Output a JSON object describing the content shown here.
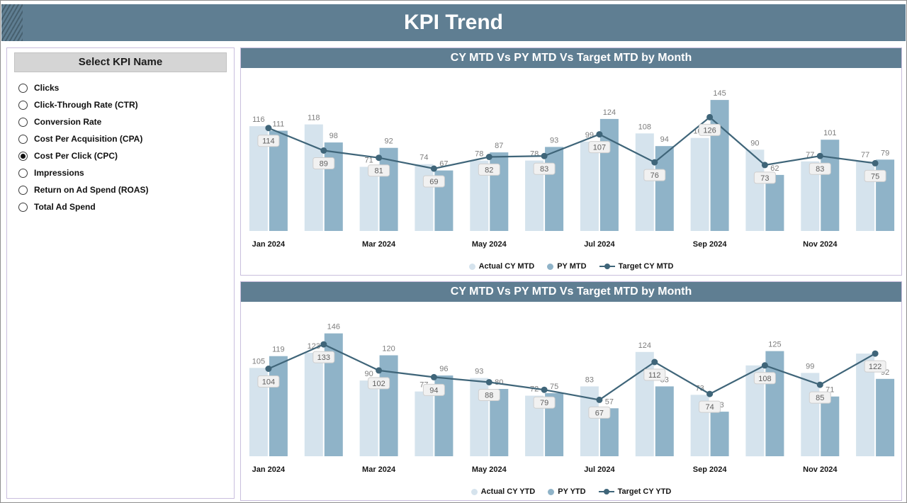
{
  "header": {
    "title": "KPI Trend"
  },
  "kpi_panel": {
    "title": "Select KPI Name",
    "options": [
      {
        "label": "Clicks",
        "selected": false
      },
      {
        "label": "Click-Through Rate (CTR)",
        "selected": false
      },
      {
        "label": "Conversion Rate",
        "selected": false
      },
      {
        "label": "Cost Per Acquisition (CPA)",
        "selected": false
      },
      {
        "label": "Cost Per Click (CPC)",
        "selected": true
      },
      {
        "label": "Impressions",
        "selected": false
      },
      {
        "label": "Return on Ad Spend (ROAS)",
        "selected": false
      },
      {
        "label": "Total Ad Spend",
        "selected": false
      }
    ]
  },
  "colors": {
    "header_bg": "#5f7e92",
    "panel_border": "#c9bedd",
    "kpi_title_bg": "#d5d5d5",
    "bar_light": "#d5e3ed",
    "bar_dark": "#8fb3c8",
    "target_line": "#3f6579",
    "bar_label_gray": "#7d7d7d"
  },
  "chart_data": [
    {
      "type": "combo_bar_line",
      "title": "CY MTD Vs PY MTD Vs Target MTD by Month",
      "categories": [
        "Jan 2024",
        "Feb 2024",
        "Mar 2024",
        "Apr 2024",
        "May 2024",
        "Jun 2024",
        "Jul 2024",
        "Aug 2024",
        "Sep 2024",
        "Oct 2024",
        "Nov 2024",
        "Dec 2024"
      ],
      "x_tick_labels": [
        "Jan 2024",
        "Mar 2024",
        "May 2024",
        "Jul 2024",
        "Sep 2024",
        "Nov 2024"
      ],
      "series": [
        {
          "name": "Actual CY MTD",
          "type": "bar",
          "color": "#d5e3ed",
          "values": [
            116,
            118,
            71,
            74,
            78,
            78,
            99,
            108,
            103,
            90,
            77,
            77
          ]
        },
        {
          "name": "PY MTD",
          "type": "bar",
          "color": "#8fb3c8",
          "values": [
            111,
            98,
            92,
            67,
            87,
            93,
            124,
            94,
            145,
            62,
            101,
            79
          ]
        },
        {
          "name": "Target CY MTD",
          "type": "line",
          "color": "#3f6579",
          "values": [
            114,
            89,
            81,
            69,
            82,
            83,
            107,
            76,
            126,
            73,
            83,
            75
          ]
        }
      ],
      "ylim": [
        0,
        160
      ],
      "grid": false,
      "legend_position": "bottom"
    },
    {
      "type": "combo_bar_line",
      "title": "CY MTD Vs PY MTD Vs Target MTD by Month",
      "categories": [
        "Jan 2024",
        "Feb 2024",
        "Mar 2024",
        "Apr 2024",
        "May 2024",
        "Jun 2024",
        "Jul 2024",
        "Aug 2024",
        "Sep 2024",
        "Oct 2024",
        "Nov 2024",
        "Dec 2024"
      ],
      "x_tick_labels": [
        "Jan 2024",
        "Mar 2024",
        "May 2024",
        "Jul 2024",
        "Sep 2024",
        "Nov 2024"
      ],
      "series": [
        {
          "name": "Actual CY YTD",
          "type": "bar",
          "color": "#d5e3ed",
          "values": [
            105,
            123,
            90,
            77,
            93,
            72,
            83,
            124,
            73,
            108,
            99,
            122
          ]
        },
        {
          "name": "PY YTD",
          "type": "bar",
          "color": "#8fb3c8",
          "values": [
            119,
            146,
            120,
            96,
            80,
            75,
            57,
            83,
            53,
            125,
            71,
            92
          ]
        },
        {
          "name": "Target CY YTD",
          "type": "line",
          "color": "#3f6579",
          "values": [
            104,
            133,
            102,
            94,
            88,
            79,
            67,
            112,
            74,
            108,
            85,
            122
          ]
        }
      ],
      "ylim": [
        0,
        160
      ],
      "grid": false,
      "legend_position": "bottom"
    }
  ]
}
